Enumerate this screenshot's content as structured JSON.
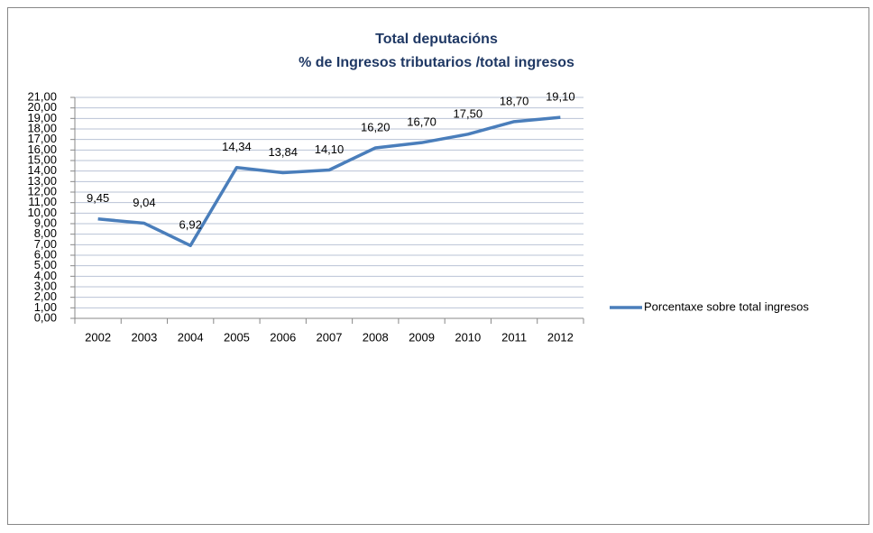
{
  "chart_data": {
    "type": "line",
    "title": "Total deputacións",
    "subtitle": "% de Ingresos tributarios /total ingresos",
    "categories": [
      "2002",
      "2003",
      "2004",
      "2005",
      "2006",
      "2007",
      "2008",
      "2009",
      "2010",
      "2011",
      "2012"
    ],
    "series": [
      {
        "name": "Porcentaxe sobre total ingresos",
        "color": "#4a7ebb",
        "values": [
          9.45,
          9.04,
          6.92,
          14.34,
          13.84,
          14.1,
          16.2,
          16.7,
          17.5,
          18.7,
          19.1
        ],
        "value_labels": [
          "9,45",
          "9,04",
          "6,92",
          "14,34",
          "13,84",
          "14,10",
          "16,20",
          "16,70",
          "17,50",
          "18,70",
          "19,10"
        ]
      }
    ],
    "ylim": [
      0,
      21
    ],
    "yticks": [
      {
        "value": 0,
        "label": "0,00"
      },
      {
        "value": 1,
        "label": "1,00"
      },
      {
        "value": 2,
        "label": "2,00"
      },
      {
        "value": 3,
        "label": "3,00"
      },
      {
        "value": 4,
        "label": "4,00"
      },
      {
        "value": 5,
        "label": "5,00"
      },
      {
        "value": 6,
        "label": "6,00"
      },
      {
        "value": 7,
        "label": "7,00"
      },
      {
        "value": 8,
        "label": "8,00"
      },
      {
        "value": 9,
        "label": "9,00"
      },
      {
        "value": 10,
        "label": "10,00"
      },
      {
        "value": 11,
        "label": "11,00"
      },
      {
        "value": 12,
        "label": "12,00"
      },
      {
        "value": 13,
        "label": "13,00"
      },
      {
        "value": 14,
        "label": "14,00"
      },
      {
        "value": 15,
        "label": "15,00"
      },
      {
        "value": 16,
        "label": "16,00"
      },
      {
        "value": 17,
        "label": "17,00"
      },
      {
        "value": 18,
        "label": "18,00"
      },
      {
        "value": 19,
        "label": "19,00"
      },
      {
        "value": 20,
        "label": "20,00"
      },
      {
        "value": 21,
        "label": "21,00"
      }
    ],
    "grid": true,
    "legend": "right"
  }
}
